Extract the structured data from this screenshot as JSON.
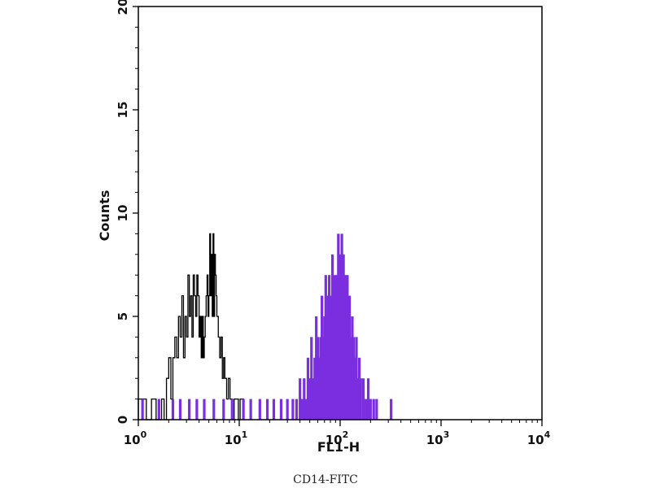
{
  "caption": "CD14-FITC",
  "colors": {
    "stained": "#7a2ee0",
    "control": "#000000",
    "axis": "#000000"
  },
  "chart_data": {
    "type": "histogram",
    "xlabel": "FL1-H",
    "ylabel": "Counts",
    "x_scale": "log",
    "xlim": [
      1,
      10000
    ],
    "ylim": [
      0,
      20
    ],
    "x_ticks": [
      {
        "value": 1,
        "base": "10",
        "exp": "0"
      },
      {
        "value": 10,
        "base": "10",
        "exp": "1"
      },
      {
        "value": 100,
        "base": "10",
        "exp": "2"
      },
      {
        "value": 1000,
        "base": "10",
        "exp": "3"
      },
      {
        "value": 10000,
        "base": "10",
        "exp": "4"
      }
    ],
    "y_ticks": [
      "0",
      "5",
      "10",
      "15",
      "20"
    ],
    "series": [
      {
        "role": "control",
        "style": "outline",
        "bins": [
          [
            1.0,
            1
          ],
          [
            1.2,
            0
          ],
          [
            1.35,
            1
          ],
          [
            1.5,
            0
          ],
          [
            1.7,
            1
          ],
          [
            1.8,
            0
          ],
          [
            1.9,
            2
          ],
          [
            2.0,
            3
          ],
          [
            2.1,
            1
          ],
          [
            2.2,
            3
          ],
          [
            2.3,
            4
          ],
          [
            2.4,
            3
          ],
          [
            2.5,
            5
          ],
          [
            2.6,
            4
          ],
          [
            2.7,
            6
          ],
          [
            2.8,
            3
          ],
          [
            2.9,
            5
          ],
          [
            3.0,
            4
          ],
          [
            3.1,
            7
          ],
          [
            3.2,
            5
          ],
          [
            3.3,
            6
          ],
          [
            3.4,
            4
          ],
          [
            3.5,
            7
          ],
          [
            3.6,
            6
          ],
          [
            3.7,
            5
          ],
          [
            3.8,
            7
          ],
          [
            3.9,
            6
          ],
          [
            4.0,
            4
          ],
          [
            4.1,
            5
          ],
          [
            4.2,
            3
          ],
          [
            4.3,
            5
          ],
          [
            4.4,
            3
          ],
          [
            4.5,
            4
          ],
          [
            4.6,
            5
          ],
          [
            4.7,
            6
          ],
          [
            4.8,
            7
          ],
          [
            4.9,
            5
          ],
          [
            5.0,
            6
          ],
          [
            5.1,
            9
          ],
          [
            5.2,
            6
          ],
          [
            5.3,
            8
          ],
          [
            5.4,
            5
          ],
          [
            5.5,
            9
          ],
          [
            5.6,
            5
          ],
          [
            5.7,
            8
          ],
          [
            5.8,
            7
          ],
          [
            5.9,
            6
          ],
          [
            6.0,
            5
          ],
          [
            6.2,
            4
          ],
          [
            6.4,
            3
          ],
          [
            6.6,
            4
          ],
          [
            6.8,
            2
          ],
          [
            7.0,
            3
          ],
          [
            7.2,
            2
          ],
          [
            7.5,
            1
          ],
          [
            7.8,
            2
          ],
          [
            8.1,
            1
          ],
          [
            8.5,
            0
          ],
          [
            8.9,
            1
          ],
          [
            9.3,
            1
          ],
          [
            9.8,
            0
          ],
          [
            10.2,
            1
          ],
          [
            11.0,
            0
          ]
        ]
      },
      {
        "role": "stained",
        "style": "filled",
        "bins": [
          [
            1.1,
            1
          ],
          [
            1.6,
            1
          ],
          [
            2.2,
            1
          ],
          [
            2.6,
            1
          ],
          [
            3.2,
            1
          ],
          [
            3.8,
            1
          ],
          [
            4.5,
            1
          ],
          [
            5.6,
            1
          ],
          [
            7.0,
            1
          ],
          [
            8.5,
            1
          ],
          [
            11.0,
            1
          ],
          [
            13.0,
            1
          ],
          [
            16.0,
            1
          ],
          [
            19.0,
            1
          ],
          [
            22.0,
            1
          ],
          [
            26.0,
            1
          ],
          [
            30.0,
            1
          ],
          [
            34.0,
            1
          ],
          [
            37.0,
            1
          ],
          [
            40.0,
            2
          ],
          [
            42.0,
            1
          ],
          [
            44.0,
            2
          ],
          [
            46.0,
            1
          ],
          [
            48.0,
            3
          ],
          [
            50.0,
            2
          ],
          [
            52.0,
            4
          ],
          [
            54.0,
            2
          ],
          [
            56.0,
            3
          ],
          [
            58.0,
            5
          ],
          [
            60.0,
            4
          ],
          [
            62.0,
            3
          ],
          [
            64.0,
            4
          ],
          [
            66.0,
            6
          ],
          [
            68.0,
            4
          ],
          [
            70.0,
            5
          ],
          [
            72.0,
            7
          ],
          [
            74.0,
            5
          ],
          [
            76.0,
            6
          ],
          [
            78.0,
            7
          ],
          [
            80.0,
            6
          ],
          [
            82.0,
            5
          ],
          [
            84.0,
            8
          ],
          [
            86.0,
            6
          ],
          [
            88.0,
            7
          ],
          [
            90.0,
            6
          ],
          [
            92.0,
            7
          ],
          [
            94.0,
            6
          ],
          [
            96.0,
            9
          ],
          [
            98.0,
            7
          ],
          [
            100.0,
            8
          ],
          [
            102.0,
            6
          ],
          [
            104.0,
            9
          ],
          [
            106.0,
            7
          ],
          [
            108.0,
            8
          ],
          [
            110.0,
            5
          ],
          [
            112.0,
            7
          ],
          [
            115.0,
            6
          ],
          [
            118.0,
            7
          ],
          [
            121.0,
            5
          ],
          [
            124.0,
            6
          ],
          [
            128.0,
            4
          ],
          [
            132.0,
            5
          ],
          [
            136.0,
            4
          ],
          [
            140.0,
            3
          ],
          [
            145.0,
            4
          ],
          [
            150.0,
            2
          ],
          [
            155.0,
            3
          ],
          [
            160.0,
            2
          ],
          [
            170.0,
            2
          ],
          [
            180.0,
            1
          ],
          [
            190.0,
            2
          ],
          [
            200.0,
            1
          ],
          [
            215.0,
            1
          ],
          [
            230.0,
            1
          ],
          [
            320.0,
            1
          ]
        ]
      }
    ]
  }
}
